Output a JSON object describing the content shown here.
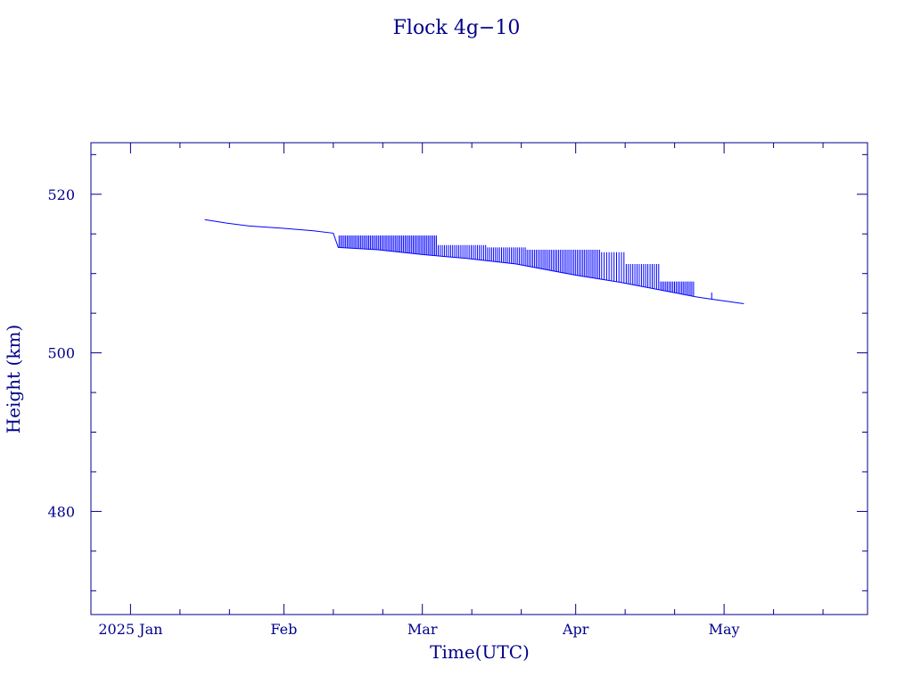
{
  "chart_data": {
    "type": "line",
    "title": "Flock 4g−10",
    "xlabel": "Time(UTC)",
    "ylabel": "Height (km)",
    "x_unit": "date",
    "xlim": [
      "2024-12-24",
      "2025-05-30"
    ],
    "ylim": [
      467,
      526.5
    ],
    "x_tick_labels": [
      {
        "date": "2025-01-01",
        "label": "2025 Jan"
      },
      {
        "date": "2025-02-01",
        "label": "Feb"
      },
      {
        "date": "2025-03-01",
        "label": "Mar"
      },
      {
        "date": "2025-04-01",
        "label": "Apr"
      },
      {
        "date": "2025-05-01",
        "label": "May"
      }
    ],
    "x_minor_ticks": [
      "2025-01-11",
      "2025-01-21",
      "2025-02-11",
      "2025-02-21",
      "2025-03-11",
      "2025-03-21",
      "2025-04-11",
      "2025-04-21",
      "2025-05-11",
      "2025-05-21"
    ],
    "y_major_ticks": [
      480,
      500,
      520
    ],
    "y_minor_ticks": [
      470,
      475,
      485,
      490,
      495,
      505,
      510,
      515,
      525
    ],
    "grid": false,
    "series": [
      {
        "name": "",
        "color": "#0000ff",
        "baseline": [
          [
            "2025-01-16",
            516.8
          ],
          [
            "2025-01-20",
            516.4
          ],
          [
            "2025-01-25",
            516.0
          ],
          [
            "2025-02-01",
            515.7
          ],
          [
            "2025-02-07",
            515.4
          ],
          [
            "2025-02-11",
            515.1
          ],
          [
            "2025-02-12",
            513.3
          ],
          [
            "2025-02-20",
            513.0
          ],
          [
            "2025-03-01",
            512.4
          ],
          [
            "2025-03-10",
            511.9
          ],
          [
            "2025-03-20",
            511.2
          ],
          [
            "2025-04-01",
            509.8
          ],
          [
            "2025-04-10",
            508.9
          ],
          [
            "2025-04-20",
            507.7
          ],
          [
            "2025-04-25",
            507.1
          ],
          [
            "2025-04-27",
            506.9
          ],
          [
            "2025-05-05",
            506.2
          ]
        ],
        "spikes": [
          {
            "start": "2025-02-12",
            "end": "2025-03-04",
            "top": 514.8,
            "count": 60
          },
          {
            "start": "2025-03-04",
            "end": "2025-03-14",
            "top": 513.6,
            "count": 24
          },
          {
            "start": "2025-03-14",
            "end": "2025-03-22",
            "top": 513.3,
            "count": 20
          },
          {
            "start": "2025-03-22",
            "end": "2025-04-06",
            "top": 513.0,
            "count": 40
          },
          {
            "start": "2025-04-06",
            "end": "2025-04-11",
            "top": 512.7,
            "count": 10
          },
          {
            "start": "2025-04-11",
            "end": "2025-04-18",
            "top": 511.2,
            "count": 16
          },
          {
            "start": "2025-04-18",
            "end": "2025-04-25",
            "top": 509.0,
            "count": 20
          },
          {
            "start": "2025-04-28",
            "end": "2025-04-29",
            "top": 507.6,
            "count": 1
          }
        ]
      }
    ]
  }
}
